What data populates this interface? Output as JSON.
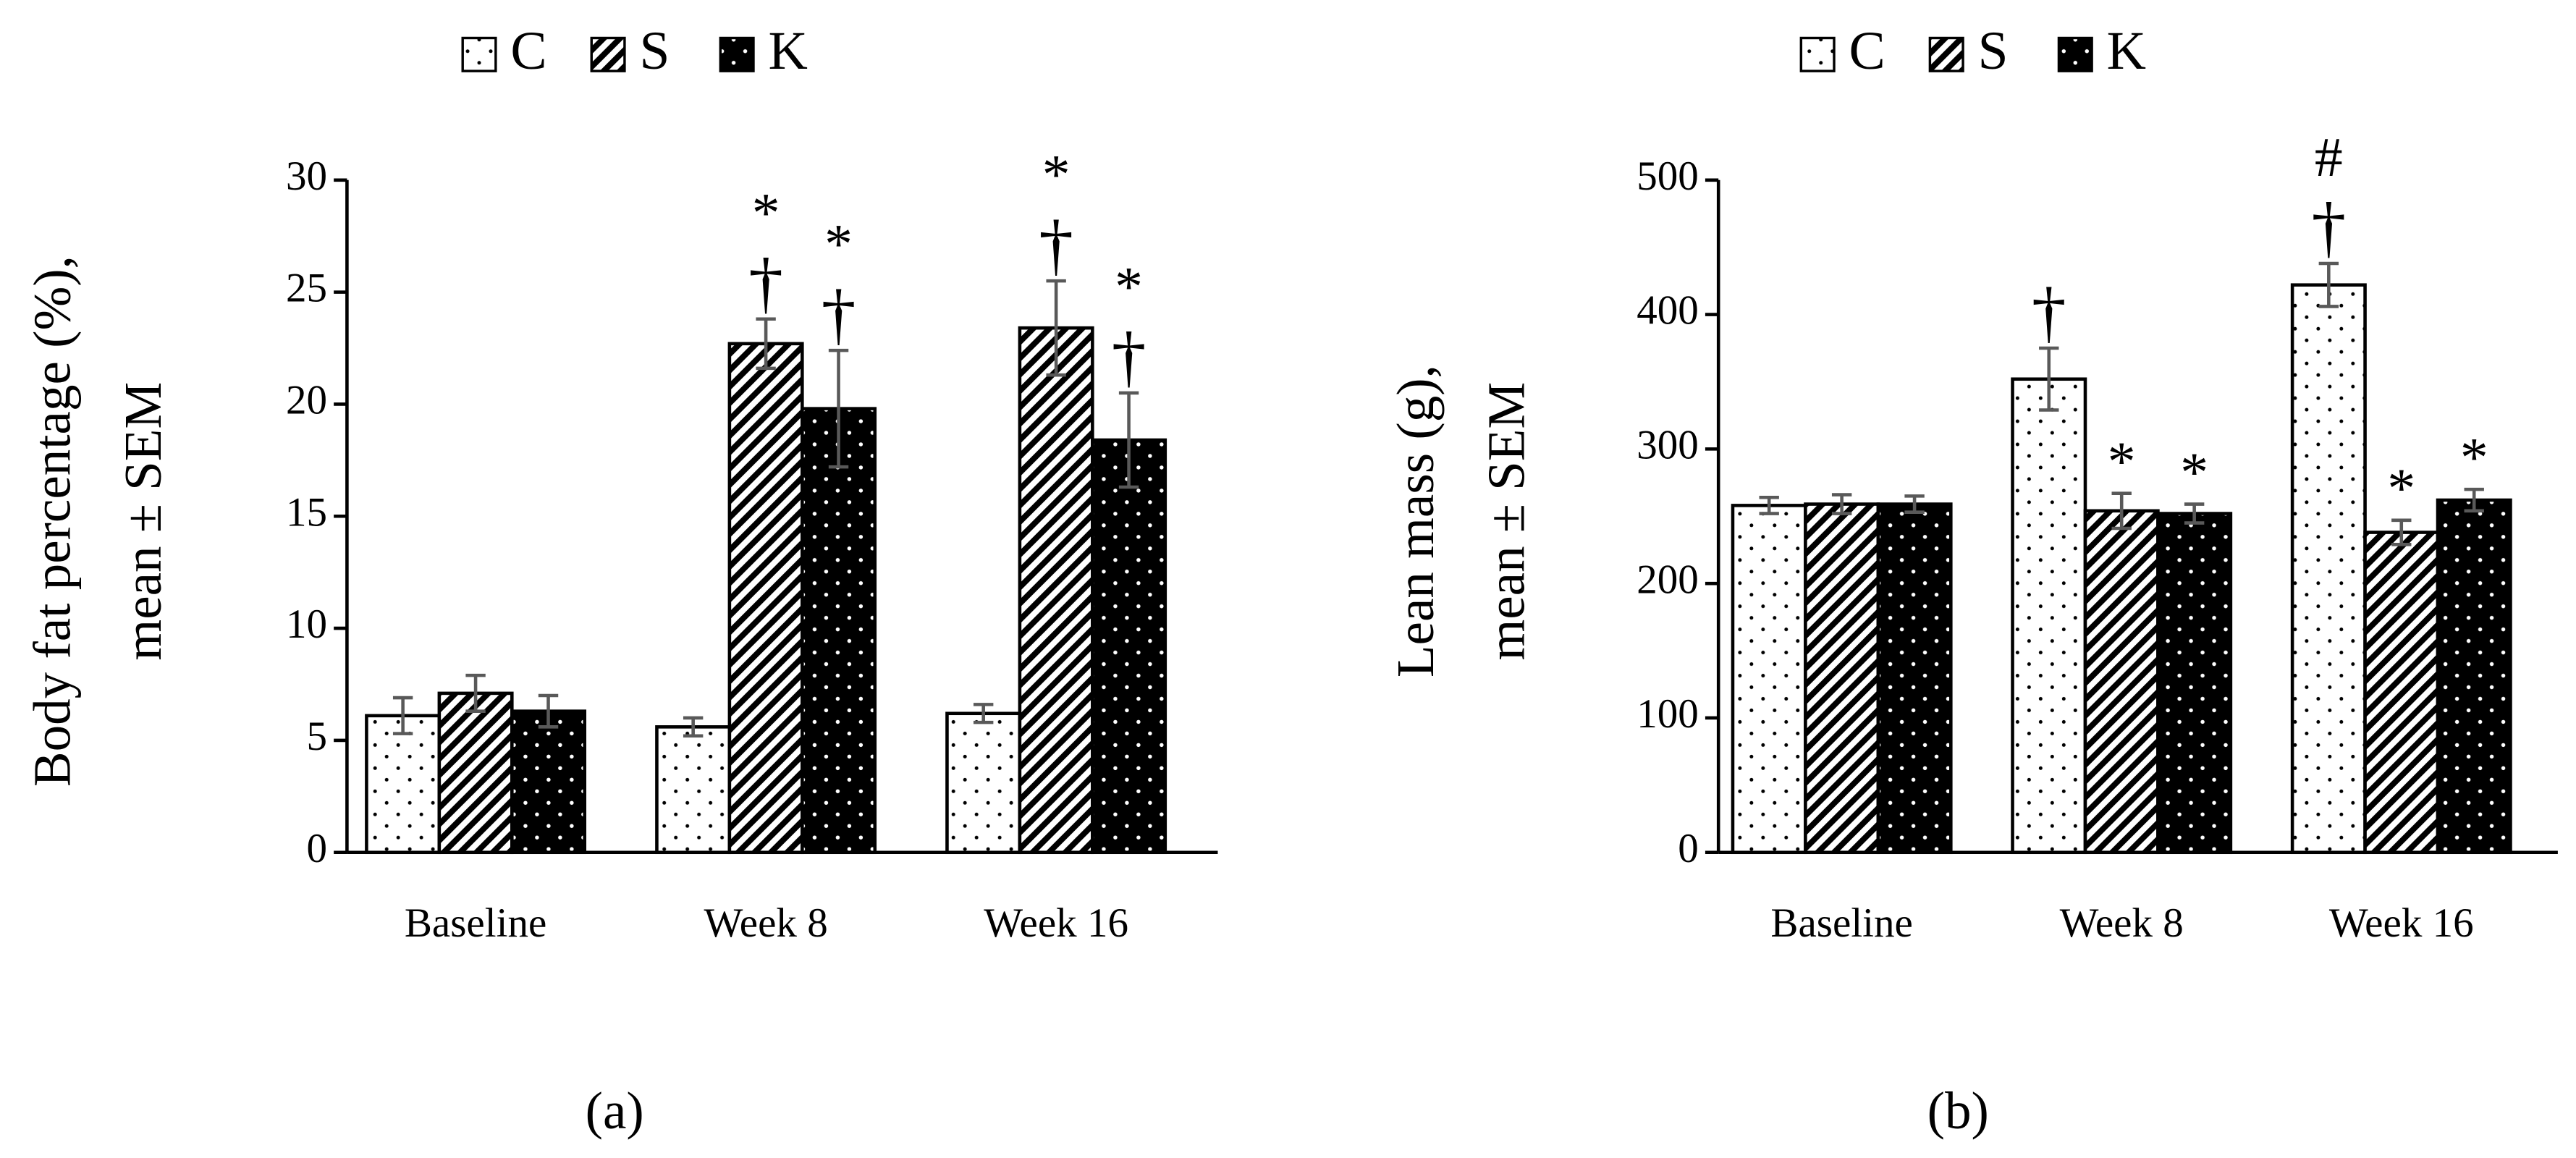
{
  "chart_data": [
    {
      "type": "bar",
      "panel_label": "(a)",
      "ylabel": [
        "Body fat percentage (%),",
        "mean ± SEM"
      ],
      "categories": [
        "Baseline",
        "Week 8",
        "Week 16"
      ],
      "series": [
        {
          "name": "C",
          "pattern": "sparse-dots",
          "values": [
            6.1,
            5.6,
            6.2
          ],
          "errors": [
            0.8,
            0.4,
            0.4
          ]
        },
        {
          "name": "S",
          "pattern": "hatch",
          "values": [
            7.1,
            22.7,
            23.4
          ],
          "errors": [
            0.8,
            1.1,
            2.1
          ]
        },
        {
          "name": "K",
          "pattern": "black-dots",
          "values": [
            6.3,
            19.8,
            18.4
          ],
          "errors": [
            0.7,
            2.6,
            2.1
          ]
        }
      ],
      "ylim": [
        0,
        30
      ],
      "yticks": [
        0,
        5,
        10,
        15,
        20,
        25,
        30
      ],
      "annotations": [
        {
          "series": 1,
          "category": 1,
          "lines": [
            "*",
            "†"
          ]
        },
        {
          "series": 2,
          "category": 1,
          "lines": [
            "*",
            "†"
          ]
        },
        {
          "series": 1,
          "category": 2,
          "lines": [
            "*",
            "†"
          ]
        },
        {
          "series": 2,
          "category": 2,
          "lines": [
            "*",
            "†"
          ]
        }
      ]
    },
    {
      "type": "bar",
      "panel_label": "(b)",
      "ylabel": [
        "Lean mass (g),",
        "mean ± SEM"
      ],
      "categories": [
        "Baseline",
        "Week 8",
        "Week 16"
      ],
      "series": [
        {
          "name": "C",
          "pattern": "sparse-dots",
          "values": [
            258,
            352,
            422
          ],
          "errors": [
            6,
            23,
            16
          ]
        },
        {
          "name": "S",
          "pattern": "hatch",
          "values": [
            259,
            254,
            238
          ],
          "errors": [
            7,
            13,
            9
          ]
        },
        {
          "name": "K",
          "pattern": "black-dots",
          "values": [
            259,
            252,
            262
          ],
          "errors": [
            6,
            7,
            8
          ]
        }
      ],
      "ylim": [
        0,
        500
      ],
      "yticks": [
        0,
        100,
        200,
        300,
        400,
        500
      ],
      "annotations": [
        {
          "series": 0,
          "category": 1,
          "lines": [
            "†"
          ]
        },
        {
          "series": 1,
          "category": 1,
          "lines": [
            "*"
          ]
        },
        {
          "series": 2,
          "category": 1,
          "lines": [
            "*"
          ]
        },
        {
          "series": 0,
          "category": 2,
          "lines": [
            "#",
            "†"
          ]
        },
        {
          "series": 1,
          "category": 2,
          "lines": [
            "*"
          ]
        },
        {
          "series": 2,
          "category": 2,
          "lines": [
            "*"
          ]
        }
      ]
    }
  ]
}
